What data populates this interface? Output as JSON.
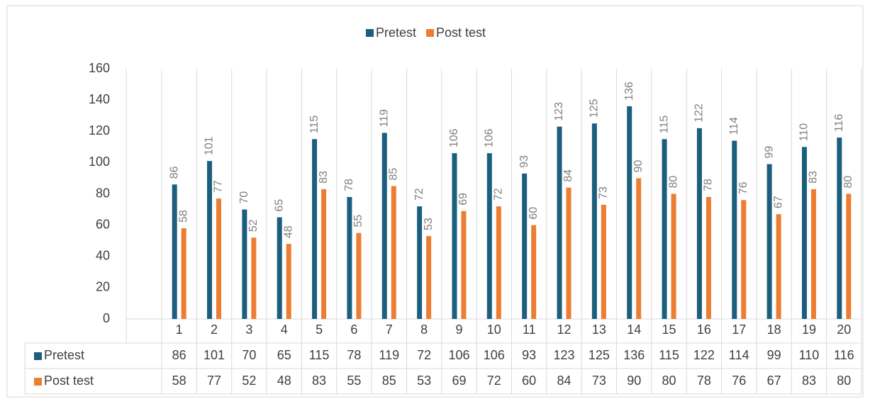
{
  "chart_data": {
    "type": "bar",
    "categories": [
      "1",
      "2",
      "3",
      "4",
      "5",
      "6",
      "7",
      "8",
      "9",
      "10",
      "11",
      "12",
      "13",
      "14",
      "15",
      "16",
      "17",
      "18",
      "19",
      "20"
    ],
    "series": [
      {
        "name": "Pretest",
        "color": "#1b5e7e",
        "values": [
          86,
          101,
          70,
          65,
          115,
          78,
          119,
          72,
          106,
          106,
          93,
          123,
          125,
          136,
          115,
          122,
          114,
          99,
          110,
          116
        ]
      },
      {
        "name": "Post test",
        "color": "#ed7d31",
        "values": [
          58,
          77,
          52,
          48,
          83,
          55,
          85,
          53,
          69,
          72,
          60,
          84,
          73,
          90,
          80,
          78,
          76,
          67,
          83,
          80
        ]
      }
    ],
    "ylim": [
      0,
      160
    ],
    "yticks": [
      0,
      20,
      40,
      60,
      80,
      100,
      120,
      140,
      160
    ],
    "legend": "top",
    "data_table": true
  }
}
